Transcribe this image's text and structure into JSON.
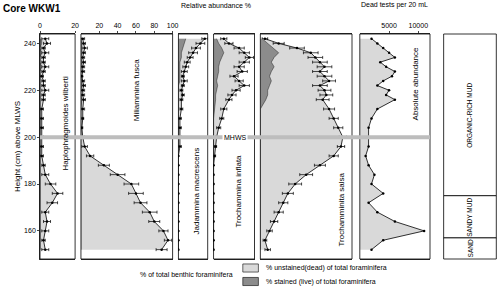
{
  "title": "Core WKW1",
  "ylabel": "Height (cm) above MLWS",
  "header": "Relative abundance %",
  "ylim": [
    148,
    244
  ],
  "yticks": [
    160,
    180,
    200,
    220,
    240
  ],
  "y": [
    242,
    240,
    238,
    236,
    234,
    232,
    230,
    228,
    226,
    224,
    222,
    220,
    218,
    216,
    212,
    208,
    204,
    200,
    196,
    192,
    188,
    184,
    180,
    176,
    172,
    168,
    164,
    160,
    156,
    152
  ],
  "mhws": {
    "label": "MHWS",
    "height": 200
  },
  "key_title": "% of total benthic foraminifera",
  "strata": [
    {
      "label": "ORGANIC-RICH MUD",
      "top": 244,
      "bottom": 175
    },
    {
      "label": "SANDY MUD",
      "top": 175,
      "bottom": 157
    },
    {
      "label": "SAND",
      "top": 157,
      "bottom": 148
    }
  ],
  "chart_data": [
    {
      "type": "area",
      "title": "Haplophragmoides wilberti",
      "xlim": [
        0,
        20
      ],
      "xticks": [
        0,
        20
      ],
      "series": [
        {
          "name": "% unstained(dead) of total foraminifera",
          "color": "#d9d9d9",
          "values": [
            3,
            4,
            2,
            3,
            2,
            2,
            3,
            2,
            1,
            2,
            2,
            3,
            2,
            2,
            1,
            1,
            1,
            1,
            1,
            1,
            2,
            3,
            6,
            10,
            7,
            3,
            4,
            3,
            2,
            3
          ],
          "errors": [
            2,
            2,
            1,
            2,
            1,
            1,
            2,
            1,
            1,
            1,
            1,
            2,
            1,
            1,
            1,
            1,
            1,
            1,
            1,
            1,
            1,
            2,
            3,
            3,
            3,
            2,
            2,
            2,
            1,
            2
          ]
        },
        {
          "name": "% stained (live) of total foraminifera",
          "color": "#8c8c8c",
          "values": [
            1,
            1,
            0,
            1,
            0,
            0,
            1,
            0,
            0,
            0,
            0,
            0,
            0,
            0,
            0,
            0,
            0,
            0,
            0,
            0,
            0,
            0,
            0,
            0,
            0,
            0,
            0,
            0,
            0,
            0
          ]
        }
      ]
    },
    {
      "type": "area",
      "title": "Miliammina fusca",
      "xlim": [
        0,
        100
      ],
      "xticks": [
        20,
        40,
        60,
        80,
        100
      ],
      "series": [
        {
          "name": "% unstained(dead) of total foraminifera",
          "color": "#d9d9d9",
          "values": [
            2,
            3,
            4,
            3,
            2,
            3,
            2,
            2,
            1,
            2,
            3,
            2,
            2,
            3,
            2,
            2,
            1,
            2,
            4,
            10,
            25,
            40,
            55,
            60,
            65,
            75,
            80,
            90,
            95,
            88
          ],
          "errors": [
            2,
            2,
            3,
            2,
            2,
            2,
            2,
            2,
            1,
            2,
            2,
            2,
            2,
            2,
            2,
            1,
            1,
            2,
            3,
            4,
            6,
            8,
            8,
            8,
            7,
            8,
            6,
            5,
            4,
            6
          ]
        },
        {
          "name": "% stained (live) of total foraminifera",
          "color": "#8c8c8c",
          "values": [
            0,
            1,
            1,
            1,
            0,
            1,
            0,
            0,
            0,
            1,
            1,
            0,
            0,
            1,
            0,
            0,
            0,
            0,
            0,
            0,
            0,
            0,
            0,
            0,
            0,
            0,
            0,
            0,
            0,
            0
          ]
        }
      ]
    },
    {
      "type": "area",
      "title": "Jadammina macrescens",
      "xlim": [
        0,
        20
      ],
      "tick_labels": false,
      "series": [
        {
          "name": "% unstained(dead) of total foraminifera",
          "color": "#d9d9d9",
          "values": [
            18,
            15,
            12,
            10,
            8,
            6,
            5,
            4,
            3,
            4,
            3,
            2,
            3,
            2,
            2,
            1,
            1,
            1,
            1,
            0,
            0,
            0,
            0,
            0,
            0,
            0,
            0,
            0,
            0,
            0
          ],
          "errors": [
            2,
            3,
            3,
            3,
            2,
            2,
            2,
            2,
            1,
            2,
            1,
            1,
            1,
            1,
            1,
            1,
            1,
            1,
            1,
            0,
            0,
            0,
            0,
            0,
            0,
            0,
            0,
            0,
            0,
            0
          ]
        },
        {
          "name": "% stained (live) of total foraminifera",
          "color": "#8c8c8c",
          "values": [
            5,
            4,
            3,
            2,
            2,
            1,
            1,
            1,
            1,
            1,
            0,
            0,
            0,
            0,
            0,
            0,
            0,
            0,
            0,
            0,
            0,
            0,
            0,
            0,
            0,
            0,
            0,
            0,
            0,
            0
          ]
        }
      ]
    },
    {
      "type": "area",
      "title": "Trochammina inflata",
      "xlim": [
        0,
        40
      ],
      "tick_labels": false,
      "series": [
        {
          "name": "% unstained(dead) of total foraminifera",
          "color": "#d9d9d9",
          "values": [
            10,
            15,
            25,
            30,
            35,
            30,
            25,
            28,
            20,
            25,
            30,
            22,
            18,
            15,
            10,
            8,
            5,
            3,
            2,
            1,
            0,
            0,
            0,
            0,
            0,
            0,
            0,
            0,
            0,
            0
          ],
          "errors": [
            3,
            4,
            5,
            5,
            4,
            5,
            5,
            5,
            4,
            4,
            5,
            4,
            4,
            3,
            3,
            2,
            2,
            1,
            1,
            1,
            0,
            0,
            0,
            0,
            0,
            0,
            0,
            0,
            0,
            0
          ]
        },
        {
          "name": "% stained (live) of total foraminifera",
          "color": "#8c8c8c",
          "values": [
            3,
            5,
            8,
            10,
            8,
            6,
            5,
            5,
            4,
            3,
            4,
            3,
            2,
            2,
            1,
            0,
            0,
            0,
            0,
            0,
            0,
            0,
            0,
            0,
            0,
            0,
            0,
            0,
            0,
            0
          ]
        }
      ]
    },
    {
      "type": "area",
      "title": "Trochamminita salsa",
      "xlim": [
        0,
        100
      ],
      "tick_labels": false,
      "series": [
        {
          "name": "% unstained(dead) of total foraminifera",
          "color": "#d9d9d9",
          "values": [
            5,
            20,
            40,
            55,
            60,
            65,
            70,
            65,
            70,
            75,
            65,
            70,
            72,
            68,
            75,
            80,
            85,
            90,
            88,
            80,
            65,
            50,
            38,
            30,
            25,
            20,
            15,
            10,
            5,
            8
          ],
          "errors": [
            3,
            6,
            8,
            8,
            8,
            8,
            8,
            8,
            8,
            7,
            8,
            7,
            7,
            7,
            6,
            5,
            5,
            4,
            4,
            5,
            6,
            7,
            7,
            6,
            5,
            5,
            4,
            3,
            2,
            3
          ]
        },
        {
          "name": "% stained (live) of total foraminifera",
          "color": "#8c8c8c",
          "values": [
            2,
            8,
            15,
            20,
            15,
            12,
            15,
            12,
            10,
            12,
            10,
            8,
            8,
            6,
            0,
            0,
            0,
            0,
            0,
            0,
            0,
            0,
            0,
            0,
            0,
            0,
            0,
            0,
            0,
            0
          ]
        }
      ]
    },
    {
      "type": "area",
      "title": "Absolute abundance",
      "xlabel": "Dead tests per 20 mL",
      "xlim": [
        0,
        12000
      ],
      "xticks": [
        5000,
        10000
      ],
      "color": "#d9d9d9",
      "values": [
        2000,
        3000,
        4000,
        5000,
        6000,
        3500,
        4500,
        6000,
        5500,
        4000,
        3000,
        5000,
        4500,
        6000,
        3000,
        2000,
        1500,
        1500,
        1500,
        1000,
        1500,
        2500,
        2000,
        4000,
        1500,
        3000,
        6000,
        11000,
        4000,
        2000
      ]
    }
  ]
}
